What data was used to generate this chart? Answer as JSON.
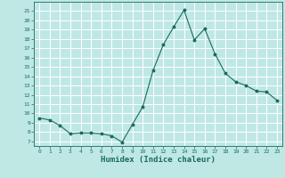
{
  "x": [
    0,
    1,
    2,
    3,
    4,
    5,
    6,
    7,
    8,
    9,
    10,
    11,
    12,
    13,
    14,
    15,
    16,
    17,
    18,
    19,
    20,
    21,
    22,
    23
  ],
  "y": [
    9.5,
    9.3,
    8.7,
    7.8,
    7.9,
    7.9,
    7.8,
    7.6,
    6.9,
    8.8,
    10.7,
    14.6,
    17.4,
    19.3,
    21.1,
    17.9,
    19.1,
    16.4,
    14.3,
    13.4,
    13.0,
    12.4,
    12.3,
    11.4
  ],
  "xlabel": "Humidex (Indice chaleur)",
  "ylim": [
    6.5,
    22
  ],
  "xlim": [
    -0.5,
    23.5
  ],
  "yticks": [
    7,
    8,
    9,
    10,
    11,
    12,
    13,
    14,
    15,
    16,
    17,
    18,
    19,
    20,
    21
  ],
  "xticks": [
    0,
    1,
    2,
    3,
    4,
    5,
    6,
    7,
    8,
    9,
    10,
    11,
    12,
    13,
    14,
    15,
    16,
    17,
    18,
    19,
    20,
    21,
    22,
    23
  ],
  "line_color": "#1a6b5e",
  "marker_color": "#1a6b5e",
  "bg_color": "#bfe8e5",
  "grid_color": "#ffffff",
  "tick_color": "#1a6b5e",
  "label_color": "#1a6b5e"
}
